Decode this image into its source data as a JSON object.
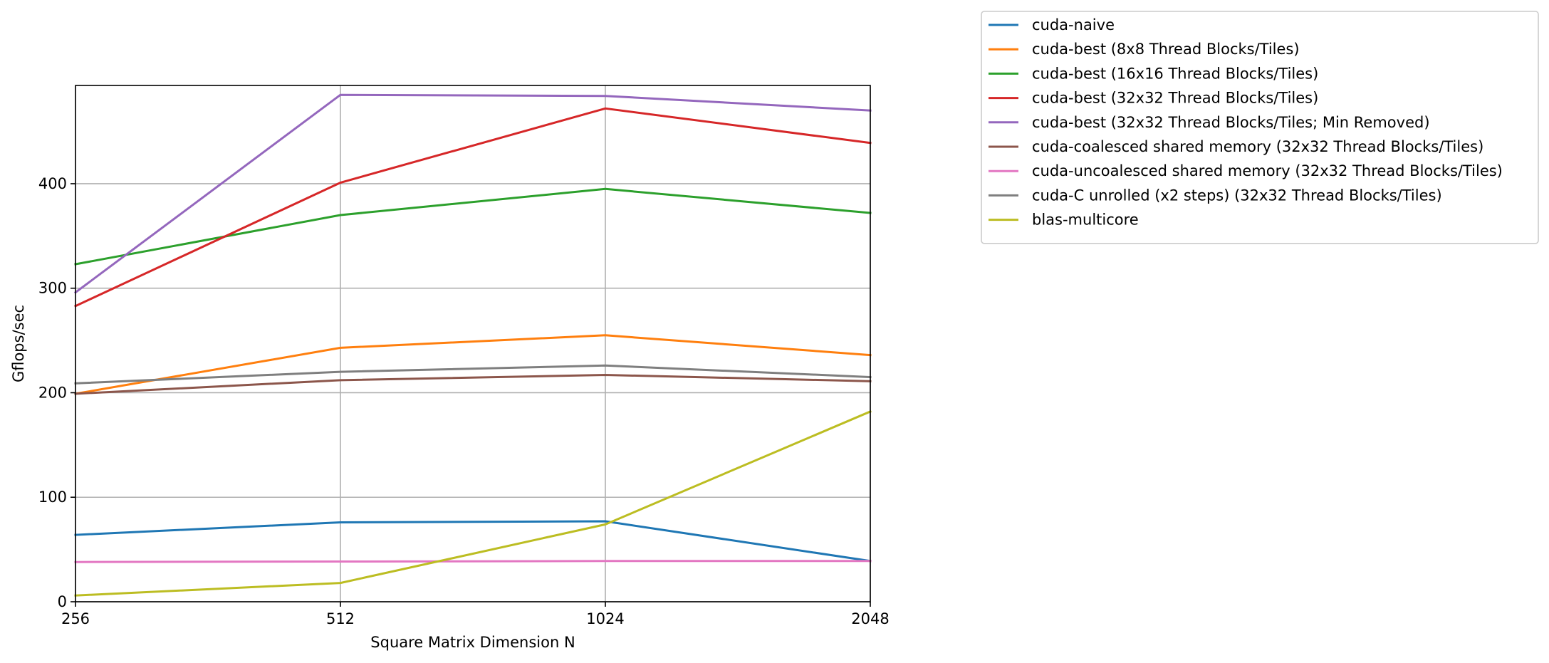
{
  "chart_data": {
    "type": "line",
    "title": "",
    "xlabel": "Square Matrix Dimension N",
    "ylabel": "Gflops/sec",
    "x": [
      256,
      512,
      1024,
      2048
    ],
    "x_tick_labels": [
      "256",
      "512",
      "1024",
      "2048"
    ],
    "x_scale": "log2",
    "xlim": [
      256,
      2048
    ],
    "y_ticks": [
      0,
      100,
      200,
      300,
      400
    ],
    "ylim": [
      0,
      494
    ],
    "grid": true,
    "legend_placement": "outside-top-right",
    "series": [
      {
        "name": "cuda-naive",
        "color": "#1f77b4",
        "values": [
          64,
          76,
          77,
          39
        ]
      },
      {
        "name": "cuda-best (8x8 Thread Blocks/Tiles)",
        "color": "#ff7f0e",
        "values": [
          199,
          243,
          255,
          236
        ]
      },
      {
        "name": "cuda-best (16x16 Thread Blocks/Tiles)",
        "color": "#2ca02c",
        "values": [
          323,
          370,
          395,
          372
        ]
      },
      {
        "name": "cuda-best (32x32 Thread Blocks/Tiles)",
        "color": "#d62728",
        "values": [
          283,
          401,
          472,
          439
        ]
      },
      {
        "name": "cuda-best (32x32 Thread Blocks/Tiles; Min Removed)",
        "color": "#9467bd",
        "values": [
          296,
          485,
          484,
          470
        ]
      },
      {
        "name": "cuda-coalesced shared memory (32x32 Thread Blocks/Tiles)",
        "color": "#8c564b",
        "values": [
          199,
          212,
          217,
          211
        ]
      },
      {
        "name": "cuda-uncoalesced shared memory (32x32 Thread Blocks/Tiles)",
        "color": "#e377c2",
        "values": [
          38,
          38.5,
          39,
          39
        ]
      },
      {
        "name": "cuda-C unrolled (x2 steps) (32x32 Thread Blocks/Tiles)",
        "color": "#7f7f7f",
        "values": [
          209,
          220,
          226,
          215
        ]
      },
      {
        "name": "blas-multicore",
        "color": "#bcbd22",
        "values": [
          6,
          18,
          74,
          182
        ]
      }
    ]
  }
}
